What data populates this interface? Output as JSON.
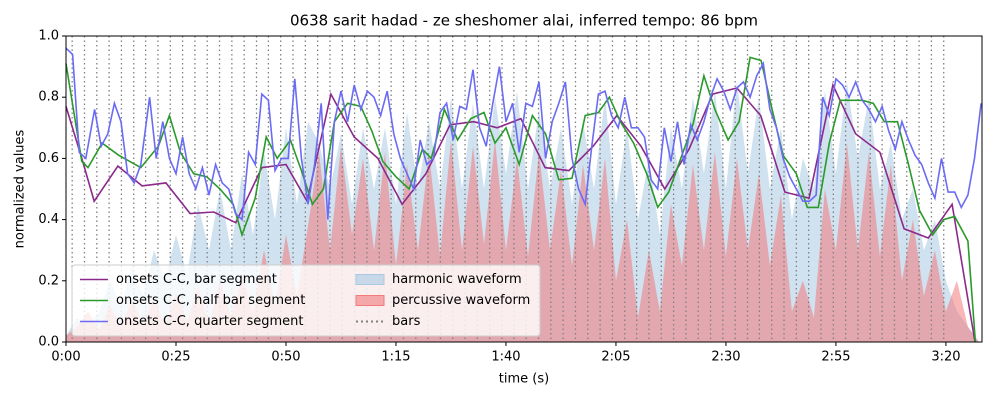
{
  "chart_data": {
    "type": "line",
    "title": "0638 sarit hadad - ze sheshomer alai, inferred tempo: 86 bpm",
    "xlabel": "time (s)",
    "ylabel": "normalized values",
    "xlim": [
      0,
      208.2
    ],
    "ylim": [
      0,
      1
    ],
    "xticks": [
      {
        "value": 0,
        "label": "0:00"
      },
      {
        "value": 25,
        "label": "0:25"
      },
      {
        "value": 50,
        "label": "0:50"
      },
      {
        "value": 75,
        "label": "1:15"
      },
      {
        "value": 100,
        "label": "1:40"
      },
      {
        "value": 125,
        "label": "2:05"
      },
      {
        "value": 150,
        "label": "2:30"
      },
      {
        "value": 175,
        "label": "2:55"
      },
      {
        "value": 200,
        "label": "3:20"
      }
    ],
    "yticks": [
      {
        "value": 0,
        "label": "0.0"
      },
      0.2,
      0.4,
      0.6,
      0.8,
      {
        "value": 1,
        "label": "1.0"
      }
    ],
    "legend": "lower left",
    "series": [
      {
        "name": "onsets C-C, bar segment",
        "type": "line",
        "color": "#8b2a8b",
        "x": [
          0,
          3.6,
          6.4,
          11.8,
          17.3,
          22.7,
          28.2,
          33.6,
          38.6,
          44.5,
          50,
          54.8,
          60.2,
          65.5,
          70.9,
          76.4,
          81.8,
          87.3,
          92.7,
          98,
          103.4,
          108.9,
          114.3,
          119.8,
          125.2,
          130.7,
          136.1,
          141.6,
          147,
          152.5,
          157.9,
          163.4,
          168.9,
          174.3,
          179.5,
          185,
          190.5,
          196,
          201.4,
          206.6
        ],
        "values": [
          0.77,
          0.6,
          0.46,
          0.575,
          0.51,
          0.52,
          0.42,
          0.425,
          0.39,
          0.57,
          0.58,
          0.46,
          0.81,
          0.67,
          0.6,
          0.45,
          0.55,
          0.71,
          0.72,
          0.7,
          0.73,
          0.57,
          0.56,
          0.64,
          0.74,
          0.64,
          0.5,
          0.63,
          0.81,
          0.83,
          0.74,
          0.49,
          0.47,
          0.84,
          0.68,
          0.62,
          0.37,
          0.34,
          0.45,
          0
        ]
      },
      {
        "name": "onsets C-C, half bar segment",
        "type": "line",
        "color": "#2a9a2a",
        "x": [
          0,
          3.6,
          5,
          8.2,
          12,
          17,
          21,
          23.5,
          26,
          29,
          32,
          35,
          38,
          40,
          43,
          45.5,
          48,
          51,
          53.5,
          56,
          58.5,
          61,
          64,
          67,
          69.5,
          72,
          75,
          78,
          81,
          83,
          86,
          89,
          92,
          95,
          97.5,
          100,
          103,
          106,
          109,
          112,
          115,
          118,
          121,
          123.5,
          126,
          129,
          132,
          134.5,
          137,
          140,
          142.5,
          145,
          147.5,
          150.5,
          153,
          155.5,
          158,
          160.5,
          163,
          166,
          168.5,
          171,
          173.5,
          176,
          178.5,
          181,
          183.5,
          186,
          189,
          191.5,
          194,
          197,
          199.5,
          202,
          205,
          206.7
        ],
        "values": [
          0.91,
          0.59,
          0.57,
          0.65,
          0.61,
          0.57,
          0.64,
          0.74,
          0.62,
          0.55,
          0.54,
          0.5,
          0.45,
          0.35,
          0.47,
          0.67,
          0.6,
          0.66,
          0.56,
          0.45,
          0.5,
          0.72,
          0.78,
          0.77,
          0.69,
          0.59,
          0.54,
          0.5,
          0.63,
          0.6,
          0.76,
          0.66,
          0.73,
          0.75,
          0.65,
          0.7,
          0.58,
          0.74,
          0.68,
          0.53,
          0.535,
          0.74,
          0.75,
          0.8,
          0.72,
          0.65,
          0.55,
          0.44,
          0.49,
          0.61,
          0.71,
          0.87,
          0.76,
          0.66,
          0.72,
          0.93,
          0.92,
          0.76,
          0.61,
          0.55,
          0.44,
          0.44,
          0.65,
          0.79,
          0.79,
          0.79,
          0.78,
          0.72,
          0.72,
          0.58,
          0.43,
          0.35,
          0.4,
          0.41,
          0.33,
          0
        ]
      },
      {
        "name": "onsets C-C, quarter segment",
        "type": "line",
        "color": "#6b6bf5",
        "x": [
          0,
          1.5,
          3,
          4.5,
          6.5,
          8,
          9.5,
          11,
          12.5,
          14,
          15.5,
          17,
          19,
          20.5,
          22,
          23.5,
          25,
          26.5,
          28,
          29.5,
          31,
          32.5,
          34,
          35.5,
          37,
          38.5,
          40,
          41.5,
          43,
          44.5,
          46,
          47.5,
          49,
          50.5,
          52,
          53.5,
          55,
          56.5,
          58,
          59.5,
          61,
          62.5,
          64,
          65.5,
          67,
          68.5,
          70,
          71.5,
          73,
          74.5,
          76,
          77.5,
          79,
          80.5,
          82,
          83.5,
          85,
          86.5,
          88,
          89.5,
          91,
          92.5,
          94,
          95.5,
          97,
          98.5,
          100,
          101.5,
          103,
          104.5,
          106,
          107.5,
          109,
          110.5,
          112,
          113.5,
          115,
          116.5,
          118,
          119.5,
          121,
          122.5,
          124,
          125.5,
          127,
          128.5,
          130,
          131.5,
          133,
          134.5,
          136,
          137.5,
          139,
          140.5,
          142,
          143.5,
          145,
          146.5,
          148,
          149.5,
          151,
          152.5,
          154,
          155.5,
          157,
          158.5,
          160,
          161.5,
          163,
          164.5,
          166,
          167.5,
          169,
          170.5,
          172,
          173.5,
          175,
          176.5,
          178,
          179.5,
          181,
          182.5,
          184,
          185.5,
          187,
          188.5,
          190,
          191.5,
          193,
          194.5,
          196,
          197.5,
          199,
          200.5,
          202,
          203.5,
          205,
          206.5,
          208
        ],
        "values": [
          0.96,
          0.94,
          0.62,
          0.6,
          0.76,
          0.64,
          0.68,
          0.78,
          0.72,
          0.55,
          0.52,
          0.58,
          0.8,
          0.6,
          0.72,
          0.6,
          0.55,
          0.67,
          0.55,
          0.5,
          0.57,
          0.48,
          0.58,
          0.52,
          0.5,
          0.42,
          0.4,
          0.62,
          0.58,
          0.81,
          0.79,
          0.56,
          0.6,
          0.6,
          0.86,
          0.6,
          0.45,
          0.58,
          0.78,
          0.4,
          0.72,
          0.82,
          0.72,
          0.84,
          0.76,
          0.82,
          0.8,
          0.74,
          0.82,
          0.68,
          0.6,
          0.55,
          0.5,
          0.66,
          0.58,
          0.6,
          0.75,
          0.78,
          0.66,
          0.77,
          0.76,
          0.89,
          0.7,
          0.64,
          0.78,
          0.9,
          0.72,
          0.78,
          0.62,
          0.78,
          0.77,
          0.85,
          0.6,
          0.72,
          0.78,
          0.85,
          0.6,
          0.5,
          0.45,
          0.64,
          0.81,
          0.82,
          0.74,
          0.7,
          0.8,
          0.7,
          0.7,
          0.67,
          0.53,
          0.5,
          0.7,
          0.59,
          0.72,
          0.58,
          0.71,
          0.66,
          0.72,
          0.8,
          0.86,
          0.82,
          0.76,
          0.83,
          0.85,
          0.8,
          0.87,
          0.91,
          0.76,
          0.7,
          0.6,
          0.54,
          0.5,
          0.46,
          0.46,
          0.48,
          0.8,
          0.74,
          0.86,
          0.84,
          0.8,
          0.85,
          0.79,
          0.76,
          0.72,
          0.77,
          0.69,
          0.63,
          0.72,
          0.66,
          0.61,
          0.58,
          0.52,
          0.47,
          0.6,
          0.49,
          0.49,
          0.44,
          0.48,
          0.6,
          0.78
        ]
      },
      {
        "name": "harmonic waveform",
        "type": "area",
        "color": "#a9c9e2",
        "x": [
          0,
          2.5,
          5,
          7.5,
          10,
          12.5,
          15,
          17.5,
          20,
          22.5,
          25,
          27.5,
          30,
          32.5,
          35,
          37.5,
          40,
          42.5,
          45,
          47.5,
          50,
          52.5,
          55,
          57.5,
          60,
          62.5,
          65,
          67.5,
          70,
          72.5,
          75,
          77.5,
          80,
          82.5,
          85,
          87.5,
          90,
          92.5,
          95,
          97.5,
          100,
          102.5,
          105,
          107.5,
          110,
          112.5,
          115,
          117.5,
          120,
          122.5,
          125,
          127.5,
          130,
          132.5,
          135,
          137.5,
          140,
          142.5,
          145,
          147.5,
          150,
          152.5,
          155,
          157.5,
          160,
          162.5,
          165,
          167.5,
          170,
          172.5,
          175,
          177.5,
          180,
          182.5,
          185,
          187.5,
          190,
          192.5,
          195,
          197.5,
          200,
          202.5,
          205,
          207.5
        ],
        "values": [
          0.02,
          0.08,
          0.05,
          0.1,
          0.2,
          0.12,
          0.25,
          0.15,
          0.3,
          0.2,
          0.35,
          0.22,
          0.45,
          0.3,
          0.5,
          0.3,
          0.55,
          0.35,
          0.62,
          0.4,
          0.7,
          0.45,
          0.72,
          0.65,
          0.5,
          0.68,
          0.45,
          0.7,
          0.5,
          0.7,
          0.45,
          0.75,
          0.5,
          0.72,
          0.5,
          0.8,
          0.5,
          0.78,
          0.5,
          0.8,
          0.55,
          0.82,
          0.5,
          0.76,
          0.5,
          0.7,
          0.45,
          0.72,
          0.5,
          0.8,
          0.45,
          0.7,
          0.4,
          0.6,
          0.35,
          0.7,
          0.5,
          0.8,
          0.55,
          0.82,
          0.5,
          0.85,
          0.55,
          0.8,
          0.5,
          0.7,
          0.4,
          0.6,
          0.5,
          0.82,
          0.55,
          0.85,
          0.6,
          0.8,
          0.5,
          0.65,
          0.4,
          0.5,
          0.3,
          0.4,
          0.2,
          0.1,
          0.05,
          0
        ]
      },
      {
        "name": "percussive waveform",
        "type": "area",
        "color": "#f27a7a",
        "x": [
          0,
          2.5,
          5,
          7.5,
          10,
          12.5,
          15,
          17.5,
          20,
          22.5,
          25,
          27.5,
          30,
          32.5,
          35,
          37.5,
          40,
          42.5,
          45,
          47.5,
          50,
          52.5,
          55,
          57.5,
          60,
          62.5,
          65,
          67.5,
          70,
          72.5,
          75,
          77.5,
          80,
          82.5,
          85,
          87.5,
          90,
          92.5,
          95,
          97.5,
          100,
          102.5,
          105,
          107.5,
          110,
          112.5,
          115,
          117.5,
          120,
          122.5,
          125,
          127.5,
          130,
          132.5,
          135,
          137.5,
          140,
          142.5,
          145,
          147.5,
          150,
          152.5,
          155,
          157.5,
          160,
          162.5,
          165,
          167.5,
          170,
          172.5,
          175,
          177.5,
          180,
          182.5,
          185,
          187.5,
          190,
          192.5,
          195,
          197.5,
          200,
          202.5,
          205,
          207.5
        ],
        "values": [
          0.02,
          0.05,
          0.1,
          0.04,
          0.12,
          0.05,
          0.14,
          0.06,
          0.15,
          0.05,
          0.16,
          0.07,
          0.18,
          0.06,
          0.2,
          0.08,
          0.22,
          0.1,
          0.3,
          0.12,
          0.35,
          0.15,
          0.38,
          0.62,
          0.3,
          0.64,
          0.35,
          0.6,
          0.3,
          0.62,
          0.25,
          0.58,
          0.3,
          0.62,
          0.28,
          0.66,
          0.3,
          0.64,
          0.32,
          0.66,
          0.3,
          0.6,
          0.28,
          0.62,
          0.3,
          0.56,
          0.25,
          0.58,
          0.3,
          0.6,
          0.2,
          0.4,
          0.08,
          0.3,
          0.1,
          0.45,
          0.25,
          0.58,
          0.3,
          0.62,
          0.28,
          0.6,
          0.3,
          0.55,
          0.25,
          0.48,
          0.1,
          0.2,
          0.08,
          0.5,
          0.3,
          0.65,
          0.3,
          0.62,
          0.28,
          0.58,
          0.2,
          0.4,
          0.15,
          0.3,
          0.1,
          0.2,
          0.05,
          0
        ]
      },
      {
        "name": "bars",
        "type": "vline",
        "color": "#808080",
        "x": [
          1.4,
          4.2,
          7.0,
          9.8,
          12.6,
          15.4,
          18.1,
          20.9,
          23.7,
          26.5,
          29.3,
          32.1,
          34.9,
          37.7,
          40.5,
          43.3,
          46.0,
          48.8,
          51.6,
          54.4,
          57.2,
          60.0,
          62.8,
          65.6,
          68.4,
          71.2,
          73.9,
          76.7,
          79.5,
          82.3,
          85.1,
          87.9,
          90.7,
          93.5,
          96.3,
          99.1,
          101.8,
          104.6,
          107.4,
          110.2,
          113.0,
          115.8,
          118.6,
          121.4,
          124.2,
          127.0,
          129.7,
          132.5,
          135.3,
          138.1,
          140.9,
          143.7,
          146.5,
          149.3,
          152.1,
          154.9,
          157.6,
          160.4,
          163.2,
          166.0,
          168.8,
          171.6,
          174.4,
          177.2,
          180.0,
          182.8,
          185.5,
          188.3,
          191.1,
          193.9,
          196.7,
          199.5
        ]
      }
    ]
  }
}
